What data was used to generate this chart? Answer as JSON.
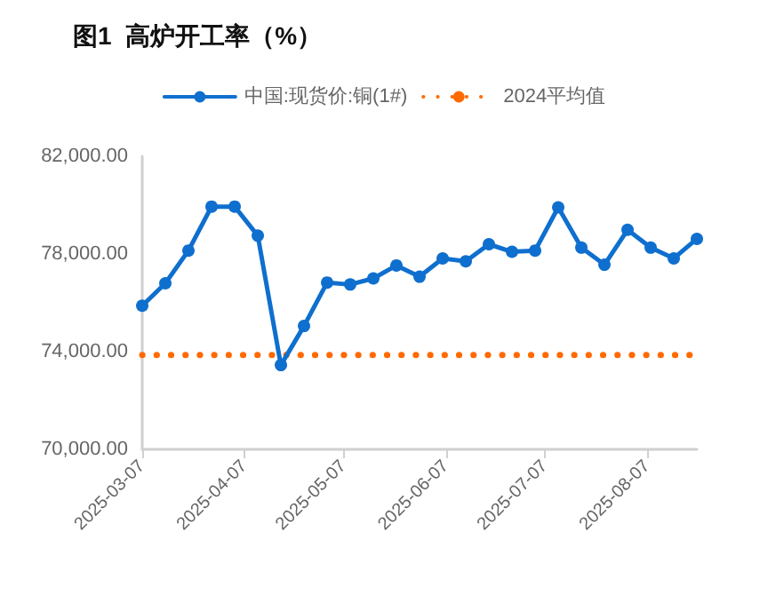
{
  "chart_data": {
    "type": "line",
    "title": "图1  高炉开工率（%）",
    "x": [
      "2025-03-07",
      "2025-03-14",
      "2025-03-21",
      "2025-03-28",
      "2025-04-04",
      "2025-04-11",
      "2025-04-18",
      "2025-04-25",
      "2025-05-02",
      "2025-05-09",
      "2025-05-16",
      "2025-05-23",
      "2025-05-30",
      "2025-06-06",
      "2025-06-13",
      "2025-06-20",
      "2025-06-27",
      "2025-07-04",
      "2025-07-11",
      "2025-07-18",
      "2025-07-25",
      "2025-08-01",
      "2025-08-08",
      "2025-08-15",
      "2025-08-22"
    ],
    "series": [
      {
        "name": "中国:现货价:铜(1#)",
        "color": "#0f6fce",
        "marker": "circle",
        "line_style": "solid",
        "values": [
          75880,
          76800,
          78140,
          79940,
          79940,
          78750,
          73450,
          75050,
          76830,
          76750,
          77000,
          77530,
          77070,
          77820,
          77700,
          78400,
          78090,
          78140,
          79910,
          78260,
          77560,
          78990,
          78260,
          77820,
          78620
        ]
      },
      {
        "name": "2024平均值",
        "color": "#ff6a00",
        "marker": "none",
        "line_style": "dotted",
        "values": [
          73860,
          73860,
          73860,
          73860,
          73860,
          73860,
          73860,
          73860,
          73860,
          73860,
          73860,
          73860,
          73860,
          73860,
          73860,
          73860,
          73860,
          73860,
          73860,
          73860,
          73860,
          73860,
          73860,
          73860,
          73860
        ]
      }
    ],
    "xlim": [
      "2025-03-07",
      "2025-08-22"
    ],
    "xticks": [
      "2025-03-07",
      "2025-04-07",
      "2025-05-07",
      "2025-06-07",
      "2025-07-07",
      "2025-08-07"
    ],
    "ylim": [
      70000,
      82000
    ],
    "yticks": [
      {
        "value": 70000,
        "label": "70,000.00"
      },
      {
        "value": 74000,
        "label": "74,000.00"
      },
      {
        "value": 78000,
        "label": "78,000.00"
      },
      {
        "value": 82000,
        "label": "82,000.00"
      }
    ],
    "grid": false,
    "legend": "top"
  }
}
